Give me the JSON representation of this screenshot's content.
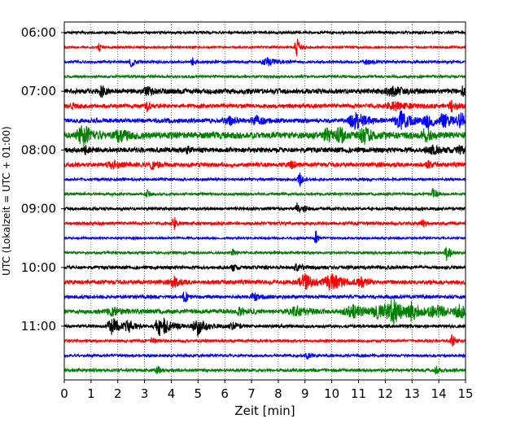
{
  "chart_data": {
    "type": "line",
    "title": "",
    "xlabel": "Zeit  [min]",
    "ylabel": "UTC (Lokalzeit = UTC + 01:00)",
    "xlim": [
      0,
      15
    ],
    "x_ticks": [
      "0",
      "1",
      "2",
      "3",
      "4",
      "5",
      "6",
      "7",
      "8",
      "9",
      "10",
      "11",
      "12",
      "13",
      "14",
      "15"
    ],
    "y_ticks": [
      "06:00",
      "07:00",
      "08:00",
      "09:00",
      "10:00",
      "11:00"
    ],
    "grid": "vertical dotted at each minute",
    "trace_interval_min": 15,
    "first_trace": "06:00",
    "colors_cycle": [
      "#000000",
      "#ff0000",
      "#0000ff",
      "#008000"
    ],
    "traces": [
      {
        "start": "06:00",
        "color": "#000000",
        "noise": 1.5,
        "events": []
      },
      {
        "start": "06:15",
        "color": "#ff0000",
        "noise": 1.2,
        "events": [
          {
            "t": 1.3,
            "amp": 5,
            "dur": 0.08
          },
          {
            "t": 8.7,
            "amp": 12,
            "dur": 0.12
          }
        ]
      },
      {
        "start": "06:30",
        "color": "#0000ff",
        "noise": 1.5,
        "events": [
          {
            "t": 2.5,
            "amp": 6,
            "dur": 0.1
          },
          {
            "t": 4.8,
            "amp": 4,
            "dur": 0.1
          },
          {
            "t": 7.6,
            "amp": 5,
            "dur": 0.3
          },
          {
            "t": 11.3,
            "amp": 3,
            "dur": 0.2
          }
        ]
      },
      {
        "start": "06:45",
        "color": "#008000",
        "noise": 1.5,
        "events": []
      },
      {
        "start": "07:00",
        "color": "#000000",
        "noise": 3.0,
        "events": [
          {
            "t": 1.4,
            "amp": 9,
            "dur": 0.1
          },
          {
            "t": 3.1,
            "amp": 4,
            "dur": 0.2
          },
          {
            "t": 12.3,
            "amp": 5,
            "dur": 0.4
          },
          {
            "t": 14.9,
            "amp": 6,
            "dur": 0.1
          }
        ]
      },
      {
        "start": "07:15",
        "color": "#ff0000",
        "noise": 2.5,
        "events": [
          {
            "t": 0.3,
            "amp": 4,
            "dur": 0.1
          },
          {
            "t": 3.1,
            "amp": 6,
            "dur": 0.1
          },
          {
            "t": 12.3,
            "amp": 5,
            "dur": 0.4
          },
          {
            "t": 14.5,
            "amp": 7,
            "dur": 0.15
          }
        ]
      },
      {
        "start": "07:30",
        "color": "#0000ff",
        "noise": 2.5,
        "events": [
          {
            "t": 7.2,
            "amp": 5,
            "dur": 0.3
          },
          {
            "t": 10.9,
            "amp": 10,
            "dur": 0.35
          },
          {
            "t": 12.6,
            "amp": 11,
            "dur": 0.35
          },
          {
            "t": 13.6,
            "amp": 9,
            "dur": 0.3
          },
          {
            "t": 14.2,
            "amp": 8,
            "dur": 0.25
          },
          {
            "t": 14.9,
            "amp": 10,
            "dur": 0.3
          },
          {
            "t": 6.2,
            "amp": 4,
            "dur": 0.3
          }
        ]
      },
      {
        "start": "07:45",
        "color": "#008000",
        "noise": 4.0,
        "events": [
          {
            "t": 0.7,
            "amp": 12,
            "dur": 0.3
          },
          {
            "t": 2.1,
            "amp": 7,
            "dur": 0.3
          },
          {
            "t": 9.8,
            "amp": 7,
            "dur": 0.2
          },
          {
            "t": 10.3,
            "amp": 10,
            "dur": 0.15
          },
          {
            "t": 11.2,
            "amp": 9,
            "dur": 0.25
          },
          {
            "t": 13.5,
            "amp": 7,
            "dur": 0.2
          }
        ]
      },
      {
        "start": "08:00",
        "color": "#000000",
        "noise": 3.0,
        "events": [
          {
            "t": 0.8,
            "amp": 4,
            "dur": 0.1
          },
          {
            "t": 4.6,
            "amp": 4,
            "dur": 0.1
          },
          {
            "t": 13.7,
            "amp": 5,
            "dur": 0.3
          },
          {
            "t": 14.8,
            "amp": 4,
            "dur": 0.2
          }
        ]
      },
      {
        "start": "08:15",
        "color": "#ff0000",
        "noise": 2.5,
        "events": [
          {
            "t": 1.8,
            "amp": 4,
            "dur": 0.3
          },
          {
            "t": 3.3,
            "amp": 8,
            "dur": 0.12
          },
          {
            "t": 8.5,
            "amp": 5,
            "dur": 0.15
          },
          {
            "t": 13.6,
            "amp": 5,
            "dur": 0.1
          }
        ]
      },
      {
        "start": "08:30",
        "color": "#0000ff",
        "noise": 1.5,
        "events": [
          {
            "t": 8.8,
            "amp": 9,
            "dur": 0.1
          }
        ]
      },
      {
        "start": "08:45",
        "color": "#008000",
        "noise": 1.5,
        "events": [
          {
            "t": 3.1,
            "amp": 5,
            "dur": 0.1
          },
          {
            "t": 13.8,
            "amp": 8,
            "dur": 0.1
          }
        ]
      },
      {
        "start": "09:00",
        "color": "#000000",
        "noise": 1.8,
        "events": [
          {
            "t": 8.7,
            "amp": 6,
            "dur": 0.1
          },
          {
            "t": 9.0,
            "amp": 4,
            "dur": 0.1
          }
        ]
      },
      {
        "start": "09:15",
        "color": "#ff0000",
        "noise": 1.8,
        "events": [
          {
            "t": 4.1,
            "amp": 9,
            "dur": 0.1
          },
          {
            "t": 13.4,
            "amp": 5,
            "dur": 0.1
          }
        ]
      },
      {
        "start": "09:30",
        "color": "#0000ff",
        "noise": 1.2,
        "events": [
          {
            "t": 9.4,
            "amp": 10,
            "dur": 0.08
          }
        ]
      },
      {
        "start": "09:45",
        "color": "#008000",
        "noise": 1.5,
        "events": [
          {
            "t": 6.3,
            "amp": 4,
            "dur": 0.1
          },
          {
            "t": 14.3,
            "amp": 9,
            "dur": 0.12
          }
        ]
      },
      {
        "start": "10:00",
        "color": "#000000",
        "noise": 2.0,
        "events": [
          {
            "t": 6.3,
            "amp": 4,
            "dur": 0.1
          },
          {
            "t": 8.7,
            "amp": 4,
            "dur": 0.2
          }
        ]
      },
      {
        "start": "10:15",
        "color": "#ff0000",
        "noise": 2.5,
        "events": [
          {
            "t": 4.1,
            "amp": 8,
            "dur": 0.15
          },
          {
            "t": 9.0,
            "amp": 9,
            "dur": 0.35
          },
          {
            "t": 10.0,
            "amp": 10,
            "dur": 0.35
          },
          {
            "t": 11.1,
            "amp": 5,
            "dur": 0.2
          }
        ]
      },
      {
        "start": "10:30",
        "color": "#0000ff",
        "noise": 2.0,
        "events": [
          {
            "t": 4.5,
            "amp": 8,
            "dur": 0.1
          },
          {
            "t": 7.1,
            "amp": 4,
            "dur": 0.2
          }
        ]
      },
      {
        "start": "10:45",
        "color": "#008000",
        "noise": 2.5,
        "events": [
          {
            "t": 1.8,
            "amp": 5,
            "dur": 0.3
          },
          {
            "t": 6.6,
            "amp": 5,
            "dur": 0.2
          },
          {
            "t": 8.7,
            "amp": 5,
            "dur": 0.5
          },
          {
            "t": 10.8,
            "amp": 7,
            "dur": 0.5
          },
          {
            "t": 11.8,
            "amp": 8,
            "dur": 0.4
          },
          {
            "t": 12.3,
            "amp": 12,
            "dur": 0.35
          },
          {
            "t": 13.0,
            "amp": 10,
            "dur": 0.3
          },
          {
            "t": 13.9,
            "amp": 8,
            "dur": 0.35
          },
          {
            "t": 14.8,
            "amp": 7,
            "dur": 0.3
          }
        ]
      },
      {
        "start": "11:00",
        "color": "#000000",
        "noise": 1.8,
        "events": [
          {
            "t": 1.8,
            "amp": 10,
            "dur": 0.3
          },
          {
            "t": 2.4,
            "amp": 7,
            "dur": 0.2
          },
          {
            "t": 3.6,
            "amp": 12,
            "dur": 0.35
          },
          {
            "t": 5.0,
            "amp": 10,
            "dur": 0.3
          },
          {
            "t": 6.3,
            "amp": 5,
            "dur": 0.2
          }
        ]
      },
      {
        "start": "11:15",
        "color": "#ff0000",
        "noise": 1.5,
        "events": [
          {
            "t": 3.3,
            "amp": 4,
            "dur": 0.1
          },
          {
            "t": 14.5,
            "amp": 9,
            "dur": 0.1
          }
        ]
      },
      {
        "start": "11:30",
        "color": "#0000ff",
        "noise": 1.5,
        "events": [
          {
            "t": 9.1,
            "amp": 4,
            "dur": 0.1
          }
        ]
      },
      {
        "start": "11:45",
        "color": "#008000",
        "noise": 1.8,
        "events": [
          {
            "t": 3.5,
            "amp": 5,
            "dur": 0.1
          },
          {
            "t": 13.9,
            "amp": 5,
            "dur": 0.1
          }
        ]
      }
    ]
  }
}
